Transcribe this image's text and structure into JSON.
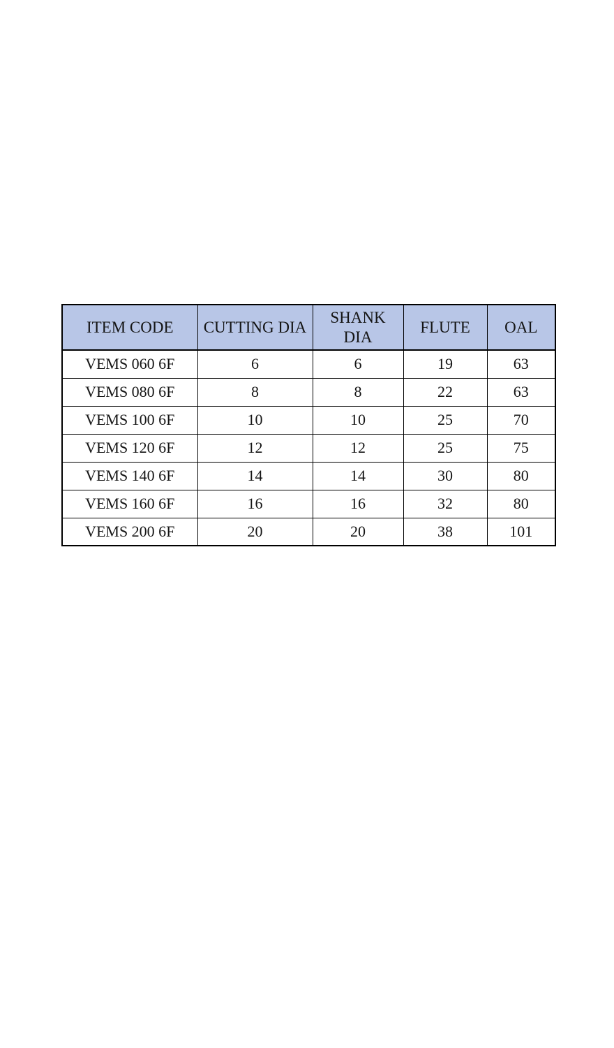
{
  "chart_data": {
    "type": "table",
    "title": "",
    "columns": [
      "ITEM CODE",
      "CUTTING DIA",
      "SHANK DIA",
      "FLUTE",
      "OAL"
    ],
    "rows": [
      [
        "VEMS 060 6F",
        "6",
        "6",
        "19",
        "63"
      ],
      [
        "VEMS 080 6F",
        "8",
        "8",
        "22",
        "63"
      ],
      [
        "VEMS 100 6F",
        "10",
        "10",
        "25",
        "70"
      ],
      [
        "VEMS 120 6F",
        "12",
        "12",
        "25",
        "75"
      ],
      [
        "VEMS 140 6F",
        "14",
        "14",
        "30",
        "80"
      ],
      [
        "VEMS 160 6F",
        "16",
        "16",
        "32",
        "80"
      ],
      [
        "VEMS 200 6F",
        "20",
        "20",
        "38",
        "101"
      ]
    ],
    "layout": {
      "header_bg_color": "#b8c6e7",
      "border_color": "#000000",
      "text_color": "#151515",
      "page_bg_color": "#ffffff",
      "grid": true
    }
  }
}
